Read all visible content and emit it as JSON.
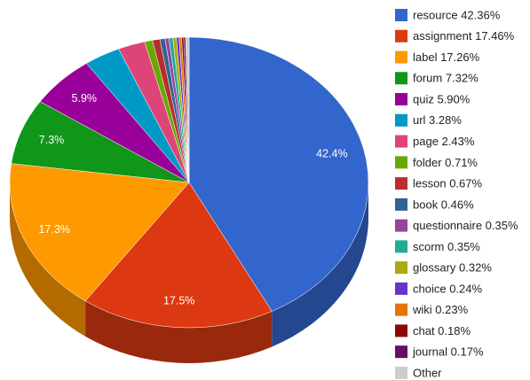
{
  "chart_data": {
    "type": "pie3d",
    "categories": [
      "resource 42.36%",
      "assignment 17.46%",
      "label 17.26%",
      "forum 7.32%",
      "quiz 5.90%",
      "url 3.28%",
      "page 2.43%",
      "folder 0.71%",
      "lesson 0.67%",
      "book 0.46%",
      "questionnaire 0.35%",
      "scorm 0.35%",
      "glossary 0.32%",
      "choice 0.24%",
      "wiki 0.23%",
      "chat 0.18%",
      "journal 0.17%",
      "Other"
    ],
    "values": [
      42.36,
      17.46,
      17.26,
      7.32,
      5.9,
      3.28,
      2.43,
      0.71,
      0.67,
      0.46,
      0.35,
      0.35,
      0.32,
      0.24,
      0.23,
      0.18,
      0.17,
      0.31
    ],
    "value_labels": [
      "42.4%",
      "17.5%",
      "17.3%",
      "7.3%",
      "5.9%",
      null,
      null,
      null,
      null,
      null,
      null,
      null,
      null,
      null,
      null,
      null,
      null,
      null
    ],
    "colors": [
      "#3366cc",
      "#dc3912",
      "#ff9900",
      "#109618",
      "#990099",
      "#0099c6",
      "#dd4477",
      "#66aa00",
      "#b82e2e",
      "#316395",
      "#994499",
      "#22aa99",
      "#aaaa11",
      "#6633cc",
      "#e67300",
      "#8b0707",
      "#651067",
      "#cccccc"
    ],
    "legend": "right"
  }
}
